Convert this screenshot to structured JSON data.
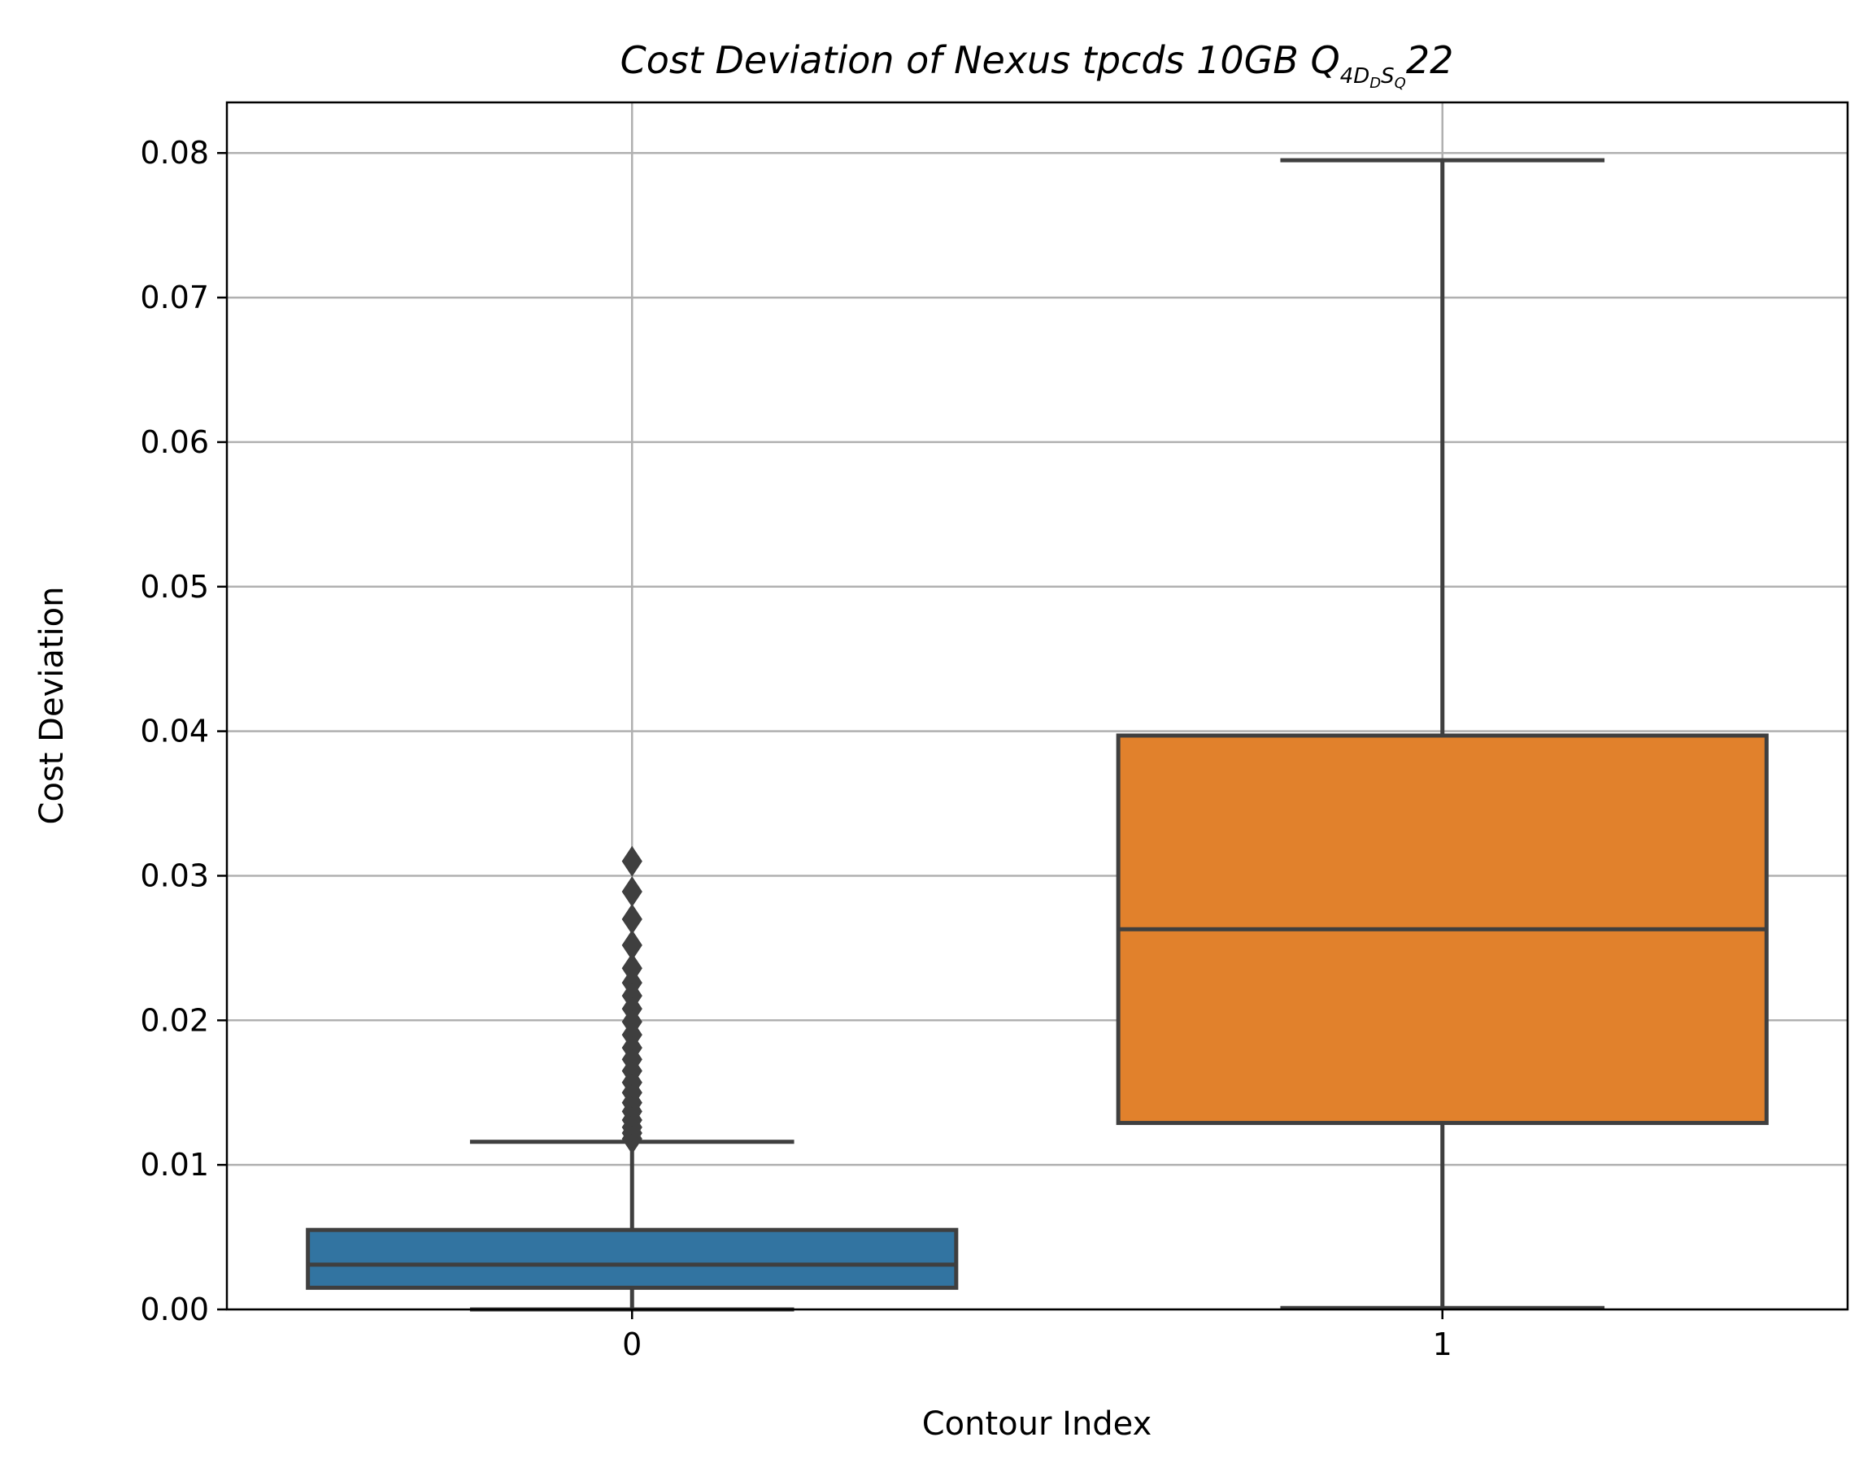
{
  "chart_data": {
    "type": "box",
    "title": {
      "main": "Cost Deviation of Nexus tpcds  10GB  Q",
      "sub": "4D",
      "subsub_1": "D",
      "sub_2": "S",
      "subsub_2": "Q",
      "tail": "22"
    },
    "xlabel": "Contour Index",
    "ylabel": "Cost Deviation",
    "ylim": [
      0,
      0.0835
    ],
    "yticks": [
      {
        "value": 0.0,
        "label": "0.00"
      },
      {
        "value": 0.01,
        "label": "0.01"
      },
      {
        "value": 0.02,
        "label": "0.02"
      },
      {
        "value": 0.03,
        "label": "0.03"
      },
      {
        "value": 0.04,
        "label": "0.04"
      },
      {
        "value": 0.05,
        "label": "0.05"
      },
      {
        "value": 0.06,
        "label": "0.06"
      },
      {
        "value": 0.07,
        "label": "0.07"
      },
      {
        "value": 0.08,
        "label": "0.08"
      }
    ],
    "grid": true,
    "categories": [
      "0",
      "1"
    ],
    "boxes": [
      {
        "category": "0",
        "color": "#3274a1",
        "whisker_low": 0.0,
        "q1": 0.0015,
        "median": 0.0031,
        "q3": 0.0055,
        "whisker_high": 0.0116,
        "outliers": [
          0.0118,
          0.0122,
          0.0126,
          0.0131,
          0.0137,
          0.0143,
          0.015,
          0.0157,
          0.0165,
          0.0173,
          0.0181,
          0.019,
          0.0199,
          0.0208,
          0.0217,
          0.0226,
          0.0236,
          0.0252,
          0.027,
          0.0289,
          0.031
        ]
      },
      {
        "category": "1",
        "color": "#e1812c",
        "whisker_low": 0.0001,
        "q1": 0.0129,
        "median": 0.0263,
        "q3": 0.0397,
        "whisker_high": 0.0795,
        "outliers": []
      }
    ]
  }
}
